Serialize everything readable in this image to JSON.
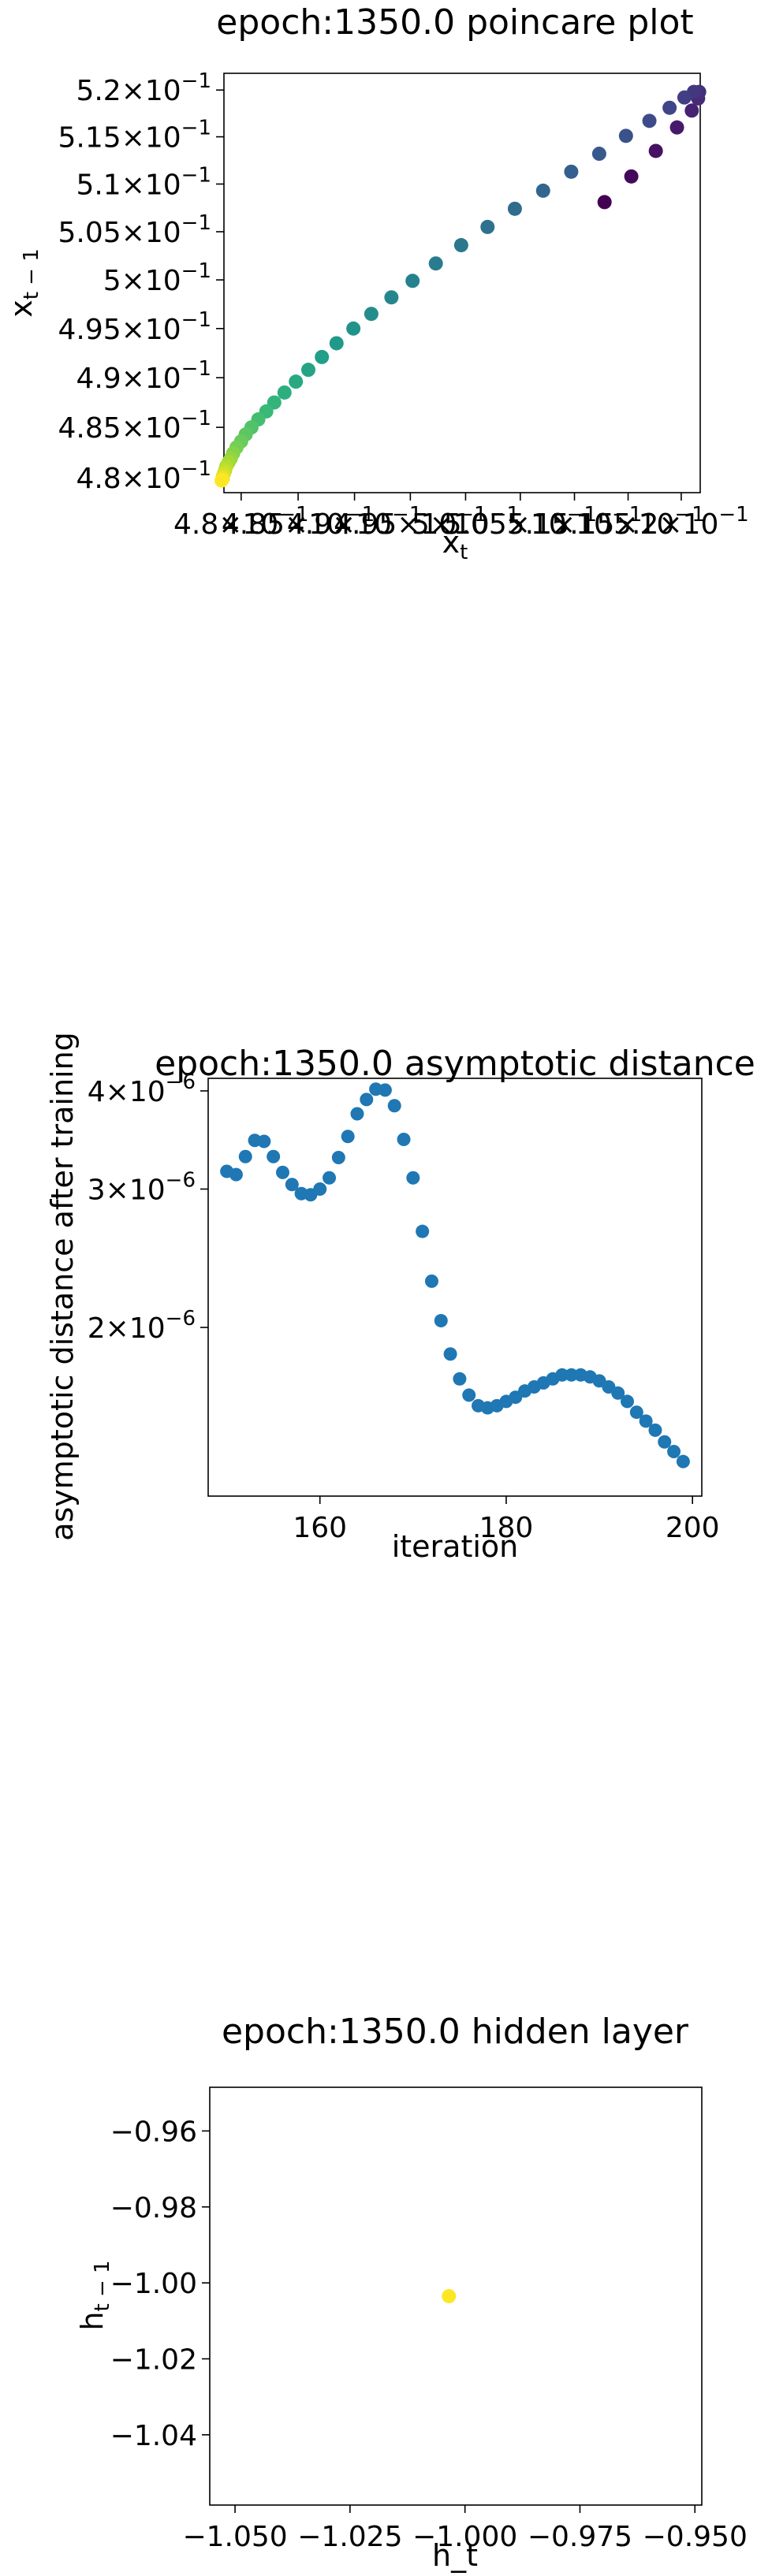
{
  "chart_data": [
    {
      "type": "scatter",
      "title": "epoch:1350.0 poincare plot",
      "xlabel": "x_t",
      "ylabel": "x_{t-1}",
      "xscale": "log",
      "yscale": "log",
      "xlim": [
        0.4785,
        0.5218
      ],
      "ylim": [
        0.4785,
        0.5218
      ],
      "colormap": "viridis",
      "x_ticks": [
        {
          "v": 0.48,
          "m": "4.8",
          "e": "−1"
        },
        {
          "v": 0.485,
          "m": "4.85",
          "e": "−1"
        },
        {
          "v": 0.49,
          "m": "4.9",
          "e": "−1"
        },
        {
          "v": 0.495,
          "m": "4.95",
          "e": "−1"
        },
        {
          "v": 0.5,
          "m": "5",
          "e": "−1"
        },
        {
          "v": 0.505,
          "m": "5.05",
          "e": "−1"
        },
        {
          "v": 0.51,
          "m": "5.1",
          "e": "−1"
        },
        {
          "v": 0.515,
          "m": "5.15",
          "e": "−1"
        },
        {
          "v": 0.52,
          "m": "5.2",
          "e": "−1"
        }
      ],
      "y_ticks": [
        {
          "v": 0.48,
          "m": "4.8",
          "e": "−1"
        },
        {
          "v": 0.485,
          "m": "4.85",
          "e": "−1"
        },
        {
          "v": 0.49,
          "m": "4.9",
          "e": "−1"
        },
        {
          "v": 0.495,
          "m": "4.95",
          "e": "−1"
        },
        {
          "v": 0.5,
          "m": "5",
          "e": "−1"
        },
        {
          "v": 0.505,
          "m": "5.05",
          "e": "−1"
        },
        {
          "v": 0.51,
          "m": "5.1",
          "e": "−1"
        },
        {
          "v": 0.515,
          "m": "5.15",
          "e": "−1"
        },
        {
          "v": 0.52,
          "m": "5.2",
          "e": "−1"
        }
      ],
      "points": [
        [
          0.5128,
          0.5081
        ],
        [
          0.5153,
          0.5108
        ],
        [
          0.5176,
          0.5135
        ],
        [
          0.5196,
          0.516
        ],
        [
          0.521,
          0.5178
        ],
        [
          0.5216,
          0.5191
        ],
        [
          0.5217,
          0.5198
        ],
        [
          0.5212,
          0.5198
        ],
        [
          0.5203,
          0.5192
        ],
        [
          0.5189,
          0.5181
        ],
        [
          0.517,
          0.5167
        ],
        [
          0.5148,
          0.5151
        ],
        [
          0.5123,
          0.5132
        ],
        [
          0.5097,
          0.5113
        ],
        [
          0.5071,
          0.5093
        ],
        [
          0.5045,
          0.5074
        ],
        [
          0.502,
          0.5055
        ],
        [
          0.4996,
          0.5036
        ],
        [
          0.4973,
          0.5017
        ],
        [
          0.4952,
          0.4999
        ],
        [
          0.4933,
          0.4982
        ],
        [
          0.4915,
          0.4965
        ],
        [
          0.4899,
          0.495
        ],
        [
          0.4884,
          0.4935
        ],
        [
          0.4871,
          0.4921
        ],
        [
          0.4859,
          0.4908
        ],
        [
          0.4848,
          0.4896
        ],
        [
          0.4838,
          0.4885
        ],
        [
          0.4829,
          0.4875
        ],
        [
          0.4822,
          0.4866
        ],
        [
          0.4815,
          0.4858
        ],
        [
          0.4809,
          0.485
        ],
        [
          0.4804,
          0.4843
        ],
        [
          0.48,
          0.4836
        ],
        [
          0.4796,
          0.483
        ],
        [
          0.4793,
          0.4824
        ],
        [
          0.4791,
          0.4819
        ],
        [
          0.4789,
          0.4815
        ],
        [
          0.4787,
          0.4811
        ],
        [
          0.4786,
          0.4807
        ],
        [
          0.4785,
          0.4804
        ],
        [
          0.4784,
          0.4801
        ],
        [
          0.4784,
          0.4799
        ],
        [
          0.4783,
          0.4797
        ]
      ]
    },
    {
      "type": "scatter",
      "title": "epoch:1350.0 asymptotic distance",
      "xlabel": "iteration",
      "ylabel": "asymptotic distance after training",
      "yscale": "log",
      "xlim": [
        148,
        201
      ],
      "ylim": [
        1.22e-06,
        4.15e-06
      ],
      "color": "#1f77b4",
      "x_ticks": [
        {
          "v": 160,
          "label": "160"
        },
        {
          "v": 180,
          "label": "180"
        },
        {
          "v": 200,
          "label": "200"
        }
      ],
      "y_ticks": [
        {
          "v": 2e-06,
          "m": "2",
          "e": "−6"
        },
        {
          "v": 3e-06,
          "m": "3",
          "e": "−6"
        },
        {
          "v": 4e-06,
          "m": "4",
          "e": "−6"
        }
      ],
      "x": [
        150,
        151,
        152,
        153,
        154,
        155,
        156,
        157,
        158,
        159,
        160,
        161,
        162,
        163,
        164,
        165,
        166,
        167,
        168,
        169,
        170,
        171,
        172,
        173,
        174,
        175,
        176,
        177,
        178,
        179,
        180,
        181,
        182,
        183,
        184,
        185,
        186,
        187,
        188,
        189,
        190,
        191,
        192,
        193,
        194,
        195,
        196,
        197,
        198,
        199
      ],
      "y": [
        3.16e-06,
        3.13e-06,
        3.3e-06,
        3.46e-06,
        3.45e-06,
        3.3e-06,
        3.15e-06,
        3.04e-06,
        2.96e-06,
        2.95e-06,
        3e-06,
        3.1e-06,
        3.29e-06,
        3.5e-06,
        3.74e-06,
        3.9e-06,
        4.02e-06,
        4.01e-06,
        3.83e-06,
        3.47e-06,
        3.1e-06,
        2.65e-06,
        2.29e-06,
        2.04e-06,
        1.85e-06,
        1.72e-06,
        1.64e-06,
        1.59e-06,
        1.58e-06,
        1.59e-06,
        1.61e-06,
        1.63e-06,
        1.66e-06,
        1.68e-06,
        1.7e-06,
        1.72e-06,
        1.74e-06,
        1.74e-06,
        1.74e-06,
        1.73e-06,
        1.71e-06,
        1.68e-06,
        1.65e-06,
        1.61e-06,
        1.56e-06,
        1.52e-06,
        1.48e-06,
        1.43e-06,
        1.39e-06,
        1.35e-06
      ]
    },
    {
      "type": "scatter",
      "title": "epoch:1350.0 hidden layer",
      "xlabel": "h_t",
      "ylabel": "h_{t-1}",
      "xlim": [
        -1.0555,
        -0.9485
      ],
      "ylim": [
        -1.0585,
        -0.9485
      ],
      "color": "#fde725",
      "x_ticks": [
        {
          "v": -1.05,
          "label": "−1.050"
        },
        {
          "v": -1.025,
          "label": "−1.025"
        },
        {
          "v": -1.0,
          "label": "−1.000"
        },
        {
          "v": -0.975,
          "label": "−0.975"
        },
        {
          "v": -0.95,
          "label": "−0.950"
        }
      ],
      "y_ticks": [
        {
          "v": -0.96,
          "label": "−0.96"
        },
        {
          "v": -0.98,
          "label": "−0.98"
        },
        {
          "v": -1.0,
          "label": "−1.00"
        },
        {
          "v": -1.02,
          "label": "−1.02"
        },
        {
          "v": -1.04,
          "label": "−1.04"
        }
      ],
      "points": [
        [
          -1.0035,
          -1.0035
        ]
      ]
    }
  ]
}
